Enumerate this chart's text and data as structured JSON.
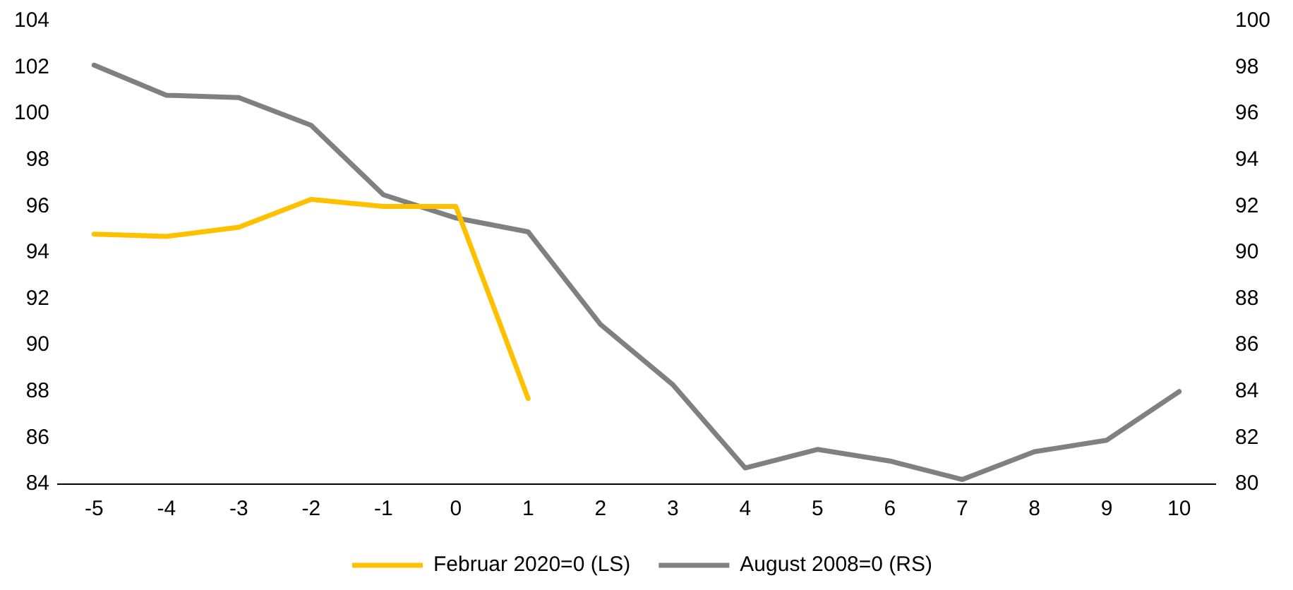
{
  "chart_data": {
    "type": "line",
    "categories": [
      "-5",
      "-4",
      "-3",
      "-2",
      "-1",
      "0",
      "1",
      "2",
      "3",
      "4",
      "5",
      "6",
      "7",
      "8",
      "9",
      "10"
    ],
    "ylim": [
      84,
      104
    ],
    "yticks": [
      84,
      86,
      88,
      90,
      92,
      94,
      96,
      98,
      100,
      102,
      104
    ],
    "y2lim": [
      80,
      100
    ],
    "y2ticks": [
      80,
      82,
      84,
      86,
      88,
      90,
      92,
      94,
      96,
      98,
      100
    ],
    "grid": false,
    "legend": "bottom",
    "marker": "none",
    "line_style": "solid",
    "series": [
      {
        "name": "Februar 2020=0 (LS)",
        "color": "#ffc000",
        "values": [
          94.8,
          94.7,
          95.1,
          96.3,
          96.0,
          96.0,
          87.7,
          null,
          null,
          null,
          null,
          null,
          null,
          null,
          null,
          null
        ]
      },
      {
        "name": "August 2008=0 (RS)",
        "color": "#808080",
        "axis": "y2",
        "values": [
          98.1,
          96.8,
          96.7,
          95.5,
          92.5,
          91.5,
          90.9,
          86.9,
          84.3,
          80.7,
          81.5,
          81.0,
          80.2,
          81.4,
          81.9,
          84.0
        ]
      }
    ]
  }
}
